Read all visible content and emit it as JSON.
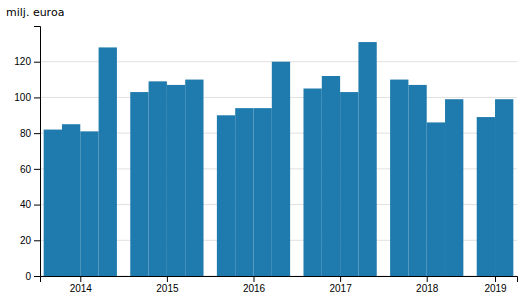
{
  "chart_data": {
    "type": "bar",
    "ylabel": "milj. euroa",
    "categories": [
      "2014",
      null,
      null,
      null,
      "2015",
      null,
      null,
      null,
      "2016",
      null,
      null,
      null,
      "2017",
      null,
      null,
      null,
      "2018",
      null,
      null,
      null,
      "2019",
      null
    ],
    "values": [
      82,
      85,
      81,
      128,
      103,
      109,
      107,
      110,
      90,
      94,
      94,
      120,
      105,
      112,
      103,
      131,
      110,
      107,
      86,
      99,
      89,
      99
    ],
    "color": "#1f7aad",
    "ylim": [
      0,
      140
    ],
    "yticks": [
      0,
      20,
      40,
      60,
      80,
      100,
      120
    ],
    "grid": true
  }
}
